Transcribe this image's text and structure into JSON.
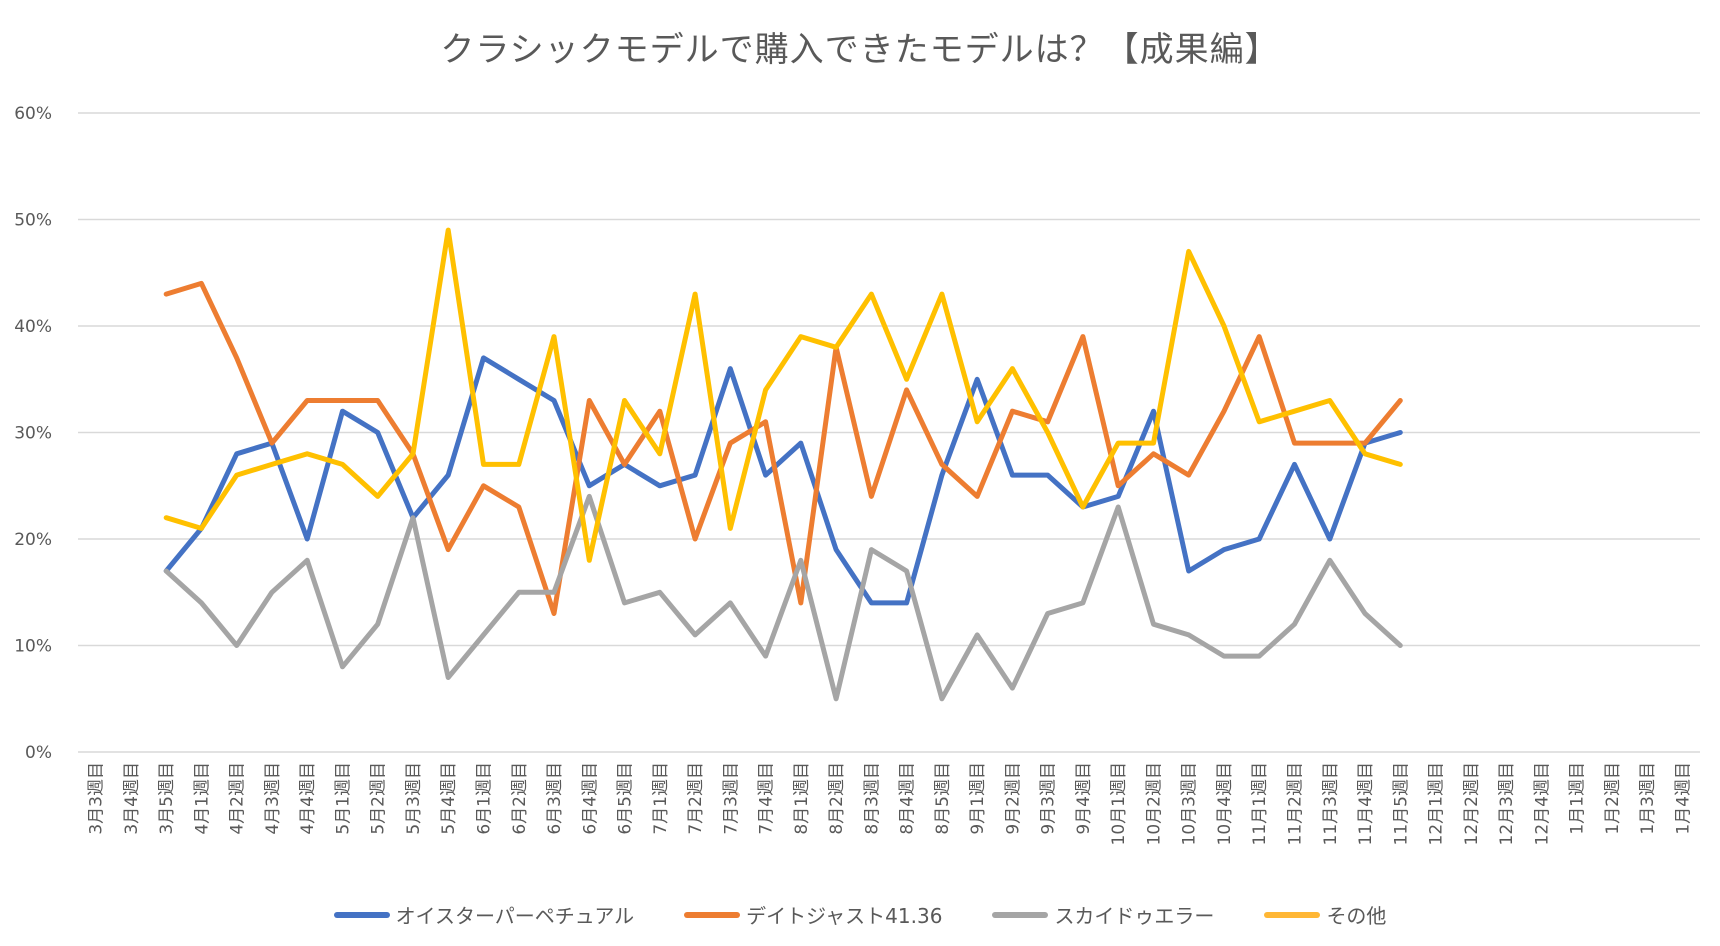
{
  "chart_data": {
    "type": "line",
    "title": "クラシックモデルで購入できたモデルは？【成果編】",
    "xlabel": "",
    "ylabel": "",
    "ylim": [
      0,
      60
    ],
    "yticks": [
      "0%",
      "10%",
      "20%",
      "30%",
      "40%",
      "50%",
      "60%"
    ],
    "ytick_values": [
      0,
      10,
      20,
      30,
      40,
      50,
      60
    ],
    "grid": true,
    "legend_position": "bottom",
    "categories": [
      "3月3週目",
      "3月4週目",
      "3月5週目",
      "4月1週目",
      "4月2週目",
      "4月3週目",
      "4月4週目",
      "5月1週目",
      "5月2週目",
      "5月3週目",
      "5月4週目",
      "6月1週目",
      "6月2週目",
      "6月3週目",
      "6月4週目",
      "6月5週目",
      "7月1週目",
      "7月2週目",
      "7月3週目",
      "7月4週目",
      "8月1週目",
      "8月2週目",
      "8月3週目",
      "8月4週目",
      "8月5週目",
      "9月1週目",
      "9月2週目",
      "9月3週目",
      "9月4週目",
      "10月1週目",
      "10月2週目",
      "10月3週目",
      "10月4週目",
      "11月1週目",
      "11月2週目",
      "11月3週目",
      "11月4週目",
      "11月5週目",
      "12月1週目",
      "12月2週目",
      "12月3週目",
      "12月4週目",
      "1月1週目",
      "1月2週目",
      "1月3週目",
      "1月4週目"
    ],
    "series": [
      {
        "name": "オイスターパーペチュアル",
        "color": "#4472C4",
        "values": [
          null,
          null,
          17,
          21,
          28,
          29,
          20,
          32,
          30,
          22,
          26,
          37,
          35,
          33,
          25,
          27,
          25,
          26,
          36,
          26,
          29,
          19,
          14,
          14,
          26,
          35,
          26,
          26,
          23,
          24,
          32,
          17,
          19,
          20,
          27,
          20,
          29,
          30,
          null,
          null,
          null,
          null,
          null,
          null,
          null,
          null
        ]
      },
      {
        "name": "デイトジャスト41.36",
        "color": "#ED7D31",
        "values": [
          null,
          null,
          43,
          44,
          37,
          29,
          33,
          33,
          33,
          28,
          19,
          25,
          23,
          13,
          33,
          27,
          32,
          20,
          29,
          31,
          14,
          38,
          24,
          34,
          27,
          24,
          32,
          31,
          39,
          25,
          28,
          26,
          32,
          39,
          29,
          29,
          29,
          33,
          null,
          null,
          null,
          null,
          null,
          null,
          null,
          null
        ]
      },
      {
        "name": "スカイドゥエラー",
        "color": "#A5A5A5",
        "values": [
          null,
          null,
          17,
          14,
          10,
          15,
          18,
          8,
          12,
          22,
          7,
          11,
          15,
          15,
          24,
          14,
          15,
          11,
          14,
          9,
          18,
          5,
          19,
          17,
          5,
          11,
          6,
          13,
          14,
          23,
          12,
          11,
          9,
          9,
          12,
          18,
          13,
          10,
          null,
          null,
          null,
          null,
          null,
          null,
          null,
          null
        ]
      },
      {
        "name": "その他",
        "color": "#FFC000",
        "values": [
          null,
          null,
          22,
          21,
          26,
          27,
          28,
          27,
          24,
          28,
          49,
          27,
          27,
          39,
          18,
          33,
          28,
          43,
          21,
          34,
          39,
          38,
          43,
          35,
          43,
          31,
          36,
          30,
          23,
          29,
          29,
          47,
          40,
          31,
          32,
          33,
          28,
          27,
          null,
          null,
          null,
          null,
          null,
          null,
          null,
          null
        ]
      }
    ]
  },
  "legend": {
    "items": [
      {
        "label": "オイスターパーペチュアル",
        "color": "#4472C4"
      },
      {
        "label": "デイトジャスト41.36",
        "color": "#ED7D31"
      },
      {
        "label": "スカイドゥエラー",
        "color": "#A5A5A5"
      },
      {
        "label": "その他",
        "color": "#FFB735"
      }
    ]
  }
}
